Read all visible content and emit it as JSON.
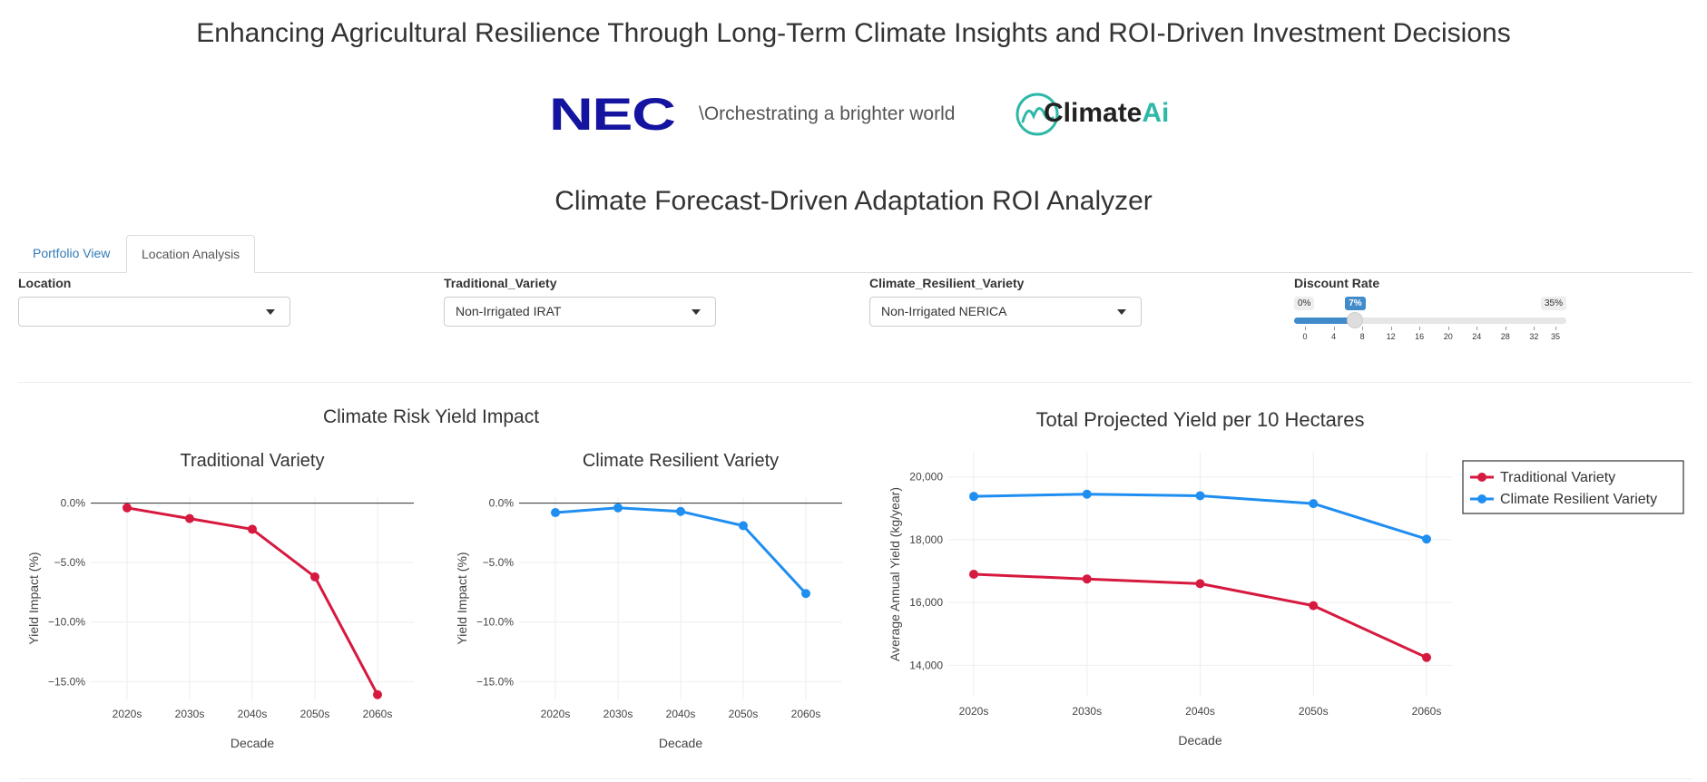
{
  "header": {
    "title": "Enhancing Agricultural Resilience Through Long-Term Climate Insights and ROI-Driven Investment Decisions",
    "nec_logo": "NEC",
    "nec_tagline": "\\Orchestrating a brighter world",
    "climateai_logo_prefix": "Climate",
    "climateai_logo_suffix": "Ai",
    "app_title": "Climate Forecast-Driven Adaptation ROI Analyzer"
  },
  "tabs": [
    {
      "label": "Portfolio View",
      "active": false
    },
    {
      "label": "Location Analysis",
      "active": true
    }
  ],
  "controls": {
    "location": {
      "label": "Location",
      "value": ""
    },
    "traditional_variety": {
      "label": "Traditional_Variety",
      "value": "Non-Irrigated IRAT"
    },
    "resilient_variety": {
      "label": "Climate_Resilient_Variety",
      "value": "Non-Irrigated NERICA"
    },
    "discount_rate": {
      "label": "Discount Rate",
      "min_label": "0%",
      "max_label": "35%",
      "value_label": "7%",
      "min": 0,
      "max": 35,
      "value": 7,
      "ticks": [
        "0",
        "4",
        "8",
        "12",
        "16",
        "20",
        "24",
        "28",
        "32",
        "35"
      ]
    }
  },
  "colors": {
    "traditional": "#d6193f",
    "resilient": "#1f8ef1",
    "accent": "#428bca",
    "nec_blue": "#1414a0",
    "climateai_teal": "#2db8a8"
  },
  "chart_data": [
    {
      "type": "line",
      "group_title": "Climate Risk Yield Impact",
      "title": "Traditional Variety",
      "xlabel": "Decade",
      "ylabel": "Yield Impact (%)",
      "categories": [
        "2020s",
        "2030s",
        "2040s",
        "2050s",
        "2060s"
      ],
      "yticks": [
        "0.0%",
        "−5.0%",
        "−10.0%",
        "−15.0%"
      ],
      "ylim": [
        -16.5,
        0.5
      ],
      "series": [
        {
          "values": [
            -0.4,
            -1.3,
            -2.2,
            -6.2,
            -16.1
          ],
          "color": "#d6193f"
        }
      ]
    },
    {
      "type": "line",
      "title": "Climate Resilient Variety",
      "xlabel": "Decade",
      "ylabel": "Yield Impact (%)",
      "categories": [
        "2020s",
        "2030s",
        "2040s",
        "2050s",
        "2060s"
      ],
      "yticks": [
        "0.0%",
        "−5.0%",
        "−10.0%",
        "−15.0%"
      ],
      "ylim": [
        -16.5,
        0.5
      ],
      "series": [
        {
          "values": [
            -0.8,
            -0.4,
            -0.7,
            -1.9,
            -7.6
          ],
          "color": "#1f8ef1"
        }
      ]
    },
    {
      "type": "line",
      "title": "Total Projected Yield per 10 Hectares",
      "xlabel": "Decade",
      "ylabel": "Average Annual Yield (kg/year)",
      "categories": [
        "2020s",
        "2030s",
        "2040s",
        "2050s",
        "2060s"
      ],
      "yticks": [
        "20,000",
        "18,000",
        "16,000",
        "14,000"
      ],
      "ylim": [
        13000,
        20800
      ],
      "legend": "top-right",
      "series": [
        {
          "name": "Traditional Variety",
          "values": [
            16900,
            16750,
            16600,
            15900,
            14250
          ],
          "color": "#d6193f"
        },
        {
          "name": "Climate Resilient Variety",
          "values": [
            19380,
            19450,
            19400,
            19150,
            18020
          ],
          "color": "#1f8ef1"
        }
      ]
    }
  ]
}
